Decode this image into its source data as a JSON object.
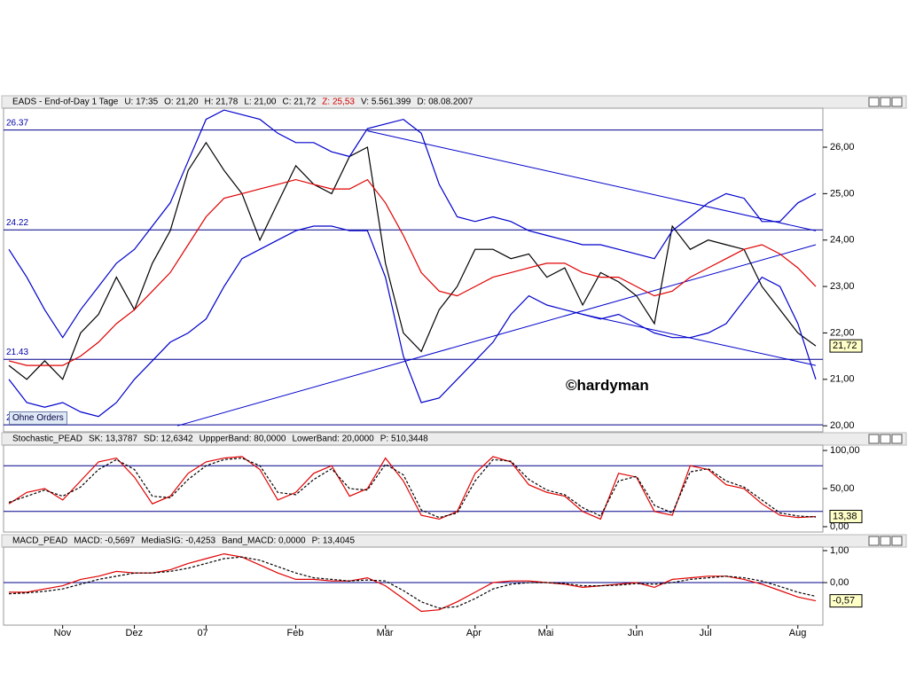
{
  "ui": {
    "button": "Ohne Orders",
    "watermark": "©hardyman"
  },
  "chart_data": [
    {
      "type": "line",
      "info": [
        "EADS - End-of-Day 1 Tage",
        "U: 17:35",
        "O: 21,20",
        "H: 21,78",
        "L: 21,00",
        "C: 21,72",
        "Z: 25,53",
        "V: 5.561.399",
        "D: 08.08.2007"
      ],
      "categories": [
        null,
        null,
        null,
        "Nov",
        null,
        null,
        null,
        "Dez",
        null,
        null,
        null,
        "07",
        null,
        null,
        null,
        null,
        "Feb",
        null,
        null,
        null,
        null,
        "Mär",
        null,
        null,
        null,
        null,
        "Apr",
        null,
        null,
        null,
        "Mai",
        null,
        null,
        null,
        null,
        "Jun",
        null,
        null,
        null,
        "Jul",
        null,
        null,
        null,
        null,
        "Aug",
        null
      ],
      "series": [
        {
          "color": "#000000",
          "values": [
            21.3,
            21.0,
            21.4,
            21.0,
            22.0,
            22.4,
            23.2,
            22.5,
            23.5,
            24.2,
            25.5,
            26.1,
            25.5,
            25.0,
            24.0,
            24.8,
            25.6,
            25.2,
            25.0,
            25.8,
            26.0,
            23.5,
            22.0,
            21.6,
            22.5,
            23.0,
            23.8,
            23.8,
            23.6,
            23.7,
            23.2,
            23.4,
            22.6,
            23.3,
            23.1,
            22.8,
            22.2,
            24.3,
            23.8,
            24.0,
            23.9,
            23.8,
            23.0,
            22.5,
            22.0,
            21.72
          ]
        },
        {
          "color": "#e00000",
          "values": [
            21.4,
            21.3,
            21.3,
            21.3,
            21.5,
            21.8,
            22.2,
            22.5,
            22.9,
            23.3,
            23.9,
            24.5,
            24.9,
            25.0,
            25.1,
            25.2,
            25.3,
            25.2,
            25.1,
            25.1,
            25.3,
            24.8,
            24.1,
            23.3,
            22.9,
            22.8,
            23.0,
            23.2,
            23.3,
            23.4,
            23.5,
            23.5,
            23.3,
            23.2,
            23.2,
            23.0,
            22.8,
            22.9,
            23.2,
            23.4,
            23.6,
            23.8,
            23.9,
            23.7,
            23.4,
            23.0
          ]
        },
        {
          "color": "#0000cc",
          "values": [
            23.8,
            23.2,
            22.5,
            21.9,
            22.5,
            23.0,
            23.5,
            23.8,
            24.3,
            24.8,
            25.7,
            26.6,
            26.8,
            26.7,
            26.6,
            26.3,
            26.1,
            26.1,
            25.9,
            25.8,
            26.4,
            26.5,
            26.6,
            26.3,
            25.2,
            24.5,
            24.4,
            24.5,
            24.4,
            24.2,
            24.1,
            24.0,
            23.9,
            23.9,
            23.8,
            23.7,
            23.6,
            24.2,
            24.5,
            24.8,
            25.0,
            24.9,
            24.4,
            24.4,
            24.8,
            25.0
          ]
        },
        {
          "color": "#0000cc",
          "values": [
            21.0,
            20.5,
            20.4,
            20.5,
            20.3,
            20.2,
            20.5,
            21.0,
            21.4,
            21.8,
            22.0,
            22.3,
            23.0,
            23.6,
            23.8,
            24.0,
            24.2,
            24.3,
            24.3,
            24.2,
            24.2,
            23.2,
            21.5,
            20.5,
            20.6,
            21.0,
            21.4,
            21.8,
            22.4,
            22.8,
            22.6,
            22.5,
            22.4,
            22.3,
            22.4,
            22.2,
            22.0,
            21.9,
            21.9,
            22.0,
            22.2,
            22.7,
            23.2,
            23.0,
            22.2,
            21.0
          ]
        }
      ],
      "levels": [
        26.37,
        24.22,
        21.43,
        20.02
      ],
      "trendlines": [
        {
          "x0": 20,
          "y0": 26.35,
          "x1": 45,
          "y1": 24.2
        },
        {
          "x0": 9.4,
          "y0": 20.0,
          "x1": 45,
          "y1": 23.9
        },
        {
          "x0": 32,
          "y0": 22.4,
          "x1": 45,
          "y1": 21.3
        }
      ],
      "last_label": "21,72",
      "ylim": [
        19.87,
        26.84
      ],
      "yticks": [
        {
          "value": 20,
          "label": "20,00"
        },
        {
          "value": 21,
          "label": "21,00"
        },
        {
          "value": 22,
          "label": "22,00"
        },
        {
          "value": 23,
          "label": "23,00"
        },
        {
          "value": 24,
          "label": "24,00"
        },
        {
          "value": 25,
          "label": "25,00"
        },
        {
          "value": 26,
          "label": "26,00"
        }
      ]
    },
    {
      "type": "line",
      "info": [
        "Stochastic_PEAD",
        "SK: 13,3787",
        "SD: 12,6342",
        "UppperBand: 80,0000",
        "LowerBand: 20,0000",
        "P: 510,3448"
      ],
      "series": [
        {
          "color": "#e00000",
          "values": [
            30,
            45,
            50,
            35,
            60,
            85,
            90,
            65,
            30,
            40,
            70,
            85,
            90,
            92,
            75,
            35,
            45,
            70,
            80,
            40,
            50,
            90,
            60,
            15,
            10,
            20,
            70,
            92,
            85,
            55,
            45,
            40,
            20,
            10,
            70,
            65,
            20,
            15,
            80,
            75,
            55,
            50,
            30,
            15,
            12,
            13.38
          ]
        },
        {
          "color": "#000000",
          "style": "dashed",
          "values": [
            32,
            40,
            48,
            40,
            52,
            75,
            88,
            75,
            40,
            38,
            62,
            80,
            88,
            90,
            80,
            45,
            42,
            62,
            76,
            50,
            48,
            82,
            68,
            22,
            12,
            18,
            60,
            88,
            86,
            62,
            48,
            42,
            25,
            14,
            60,
            66,
            28,
            18,
            72,
            76,
            60,
            52,
            35,
            18,
            14,
            12.63
          ]
        }
      ],
      "hlines": [
        80,
        20
      ],
      "last_label": "13,38",
      "ylim": [
        -7,
        107
      ],
      "yticks": [
        {
          "value": 0,
          "label": "0,00"
        },
        {
          "value": 50,
          "label": "50,00"
        },
        {
          "value": 100,
          "label": "100,00"
        }
      ]
    },
    {
      "type": "line",
      "info": [
        "MACD_PEAD",
        "MACD: -0,5697",
        "MediaSIG: -0,4253",
        "Band_MACD: 0,0000",
        "P: 13,4045"
      ],
      "series": [
        {
          "color": "#e00000",
          "values": [
            -0.3,
            -0.3,
            -0.2,
            -0.1,
            0.1,
            0.2,
            0.35,
            0.3,
            0.3,
            0.4,
            0.6,
            0.75,
            0.9,
            0.8,
            0.55,
            0.3,
            0.1,
            0.1,
            0.05,
            0.05,
            0.15,
            -0.1,
            -0.5,
            -0.9,
            -0.85,
            -0.6,
            -0.3,
            0.0,
            0.05,
            0.05,
            0.0,
            -0.05,
            -0.15,
            -0.1,
            -0.05,
            0.0,
            -0.15,
            0.1,
            0.15,
            0.2,
            0.2,
            0.1,
            -0.05,
            -0.25,
            -0.45,
            -0.57
          ]
        },
        {
          "color": "#000000",
          "style": "dashed",
          "values": [
            -0.35,
            -0.32,
            -0.27,
            -0.2,
            -0.05,
            0.1,
            0.2,
            0.3,
            0.3,
            0.35,
            0.45,
            0.6,
            0.75,
            0.8,
            0.7,
            0.5,
            0.3,
            0.15,
            0.1,
            0.05,
            0.08,
            0.05,
            -0.25,
            -0.6,
            -0.8,
            -0.75,
            -0.5,
            -0.2,
            -0.05,
            0.0,
            0.0,
            -0.03,
            -0.1,
            -0.1,
            -0.08,
            -0.03,
            -0.05,
            0.0,
            0.1,
            0.15,
            0.2,
            0.15,
            0.05,
            -0.12,
            -0.3,
            -0.43
          ]
        }
      ],
      "hlines": [
        0
      ],
      "last_label": "-0,57",
      "ylim": [
        -1.33,
        1.11
      ],
      "yticks": [
        {
          "value": 0,
          "label": "0,00"
        },
        {
          "value": 1,
          "label": "1,00"
        }
      ]
    }
  ]
}
